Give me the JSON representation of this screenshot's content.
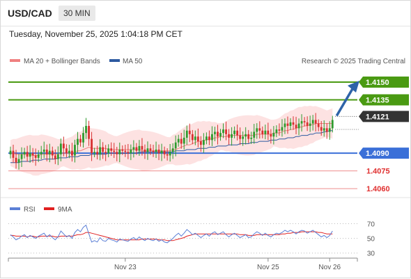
{
  "header": {
    "symbol": "USD/CAD",
    "timeframe": "30 MIN"
  },
  "timestamp": "Tuesday, November 25, 2025 1:04:18 PM CET",
  "legend": {
    "bollinger": {
      "label": "MA 20 + Bollinger Bands",
      "color": "#f08080"
    },
    "ma50": {
      "label": "MA 50",
      "color": "#2d5aa0"
    },
    "rsi": {
      "label": "RSI",
      "color": "#5b7fd6"
    },
    "rsi_ma": {
      "label": "9MA",
      "color": "#e02020"
    }
  },
  "copyright": "Research © 2025 Trading Central",
  "colors": {
    "up": "#2e9b2e",
    "down": "#d83030",
    "target": "#4a9a12",
    "pivot": "#3a6fd8",
    "support": "#e03030",
    "arrow": "#2e63a8",
    "current": "#333333"
  },
  "chart_data": [
    {
      "type": "candlestick",
      "title": "USD/CAD",
      "timeframe": "30 MIN",
      "x_ticks": [
        {
          "label": "Nov 23",
          "index": 41
        },
        {
          "label": "Nov 25",
          "index": 92
        },
        {
          "label": "Nov 26",
          "index": 114
        }
      ],
      "ylim": [
        1.4053,
        1.416
      ],
      "current_price": "1.4121",
      "levels": [
        {
          "label": "1.4150",
          "value": 1.415,
          "kind": "target"
        },
        {
          "label": "1.4135",
          "value": 1.4135,
          "kind": "target"
        },
        {
          "label": "1.4090",
          "value": 1.409,
          "kind": "pivot"
        },
        {
          "label": "1.4075",
          "value": 1.4075,
          "kind": "support"
        },
        {
          "label": "1.4060",
          "value": 1.406,
          "kind": "support"
        }
      ],
      "close": [
        1.4092,
        1.4086,
        1.4082,
        1.4085,
        1.4089,
        1.4091,
        1.4087,
        1.409,
        1.4088,
        1.4086,
        1.4089,
        1.4091,
        1.4093,
        1.4089,
        1.4092,
        1.4088,
        1.4085,
        1.4089,
        1.4098,
        1.4094,
        1.409,
        1.4092,
        1.4088,
        1.4097,
        1.4102,
        1.4099,
        1.4107,
        1.4113,
        1.4102,
        1.409,
        1.4091,
        1.4089,
        1.4095,
        1.4091,
        1.409,
        1.4094,
        1.4092,
        1.4091,
        1.4089,
        1.4093,
        1.4092,
        1.4091,
        1.409,
        1.4093,
        1.4095,
        1.4092,
        1.4096,
        1.4093,
        1.4091,
        1.4094,
        1.4092,
        1.4091,
        1.4093,
        1.409,
        1.4092,
        1.4089,
        1.4088,
        1.4091,
        1.4094,
        1.4099,
        1.4102,
        1.4098,
        1.4103,
        1.4109,
        1.4106,
        1.4101,
        1.4104,
        1.41,
        1.4097,
        1.4101,
        1.4104,
        1.4101,
        1.4106,
        1.4108,
        1.4104,
        1.4107,
        1.411,
        1.4106,
        1.4103,
        1.4106,
        1.4109,
        1.4105,
        1.4102,
        1.4104,
        1.4106,
        1.4102,
        1.4103,
        1.4108,
        1.4111,
        1.4109,
        1.4106,
        1.4109,
        1.4106,
        1.4104,
        1.4107,
        1.411,
        1.4109,
        1.4112,
        1.4115,
        1.4113,
        1.4116,
        1.4114,
        1.4111,
        1.4115,
        1.4117,
        1.4116,
        1.4113,
        1.4115,
        1.4118,
        1.4115,
        1.4112,
        1.4109,
        1.4111,
        1.4108,
        1.4111,
        1.4118
      ],
      "ma20": [
        1.409,
        1.409,
        1.4089,
        1.4089,
        1.4089,
        1.4089,
        1.4089,
        1.4089,
        1.4088,
        1.4088,
        1.4088,
        1.4089,
        1.4089,
        1.4089,
        1.4089,
        1.4089,
        1.4089,
        1.4089,
        1.409,
        1.409,
        1.409,
        1.409,
        1.409,
        1.4091,
        1.4092,
        1.4092,
        1.4093,
        1.4094,
        1.4095,
        1.4094,
        1.4094,
        1.4094,
        1.4094,
        1.4094,
        1.4094,
        1.4093,
        1.4093,
        1.4093,
        1.4093,
        1.4093,
        1.4093,
        1.4093,
        1.4093,
        1.4093,
        1.4093,
        1.4093,
        1.4093,
        1.4092,
        1.4092,
        1.4092,
        1.4092,
        1.4092,
        1.4092,
        1.4092,
        1.4092,
        1.4092,
        1.4092,
        1.4092,
        1.4093,
        1.4093,
        1.4094,
        1.4095,
        1.4096,
        1.4097,
        1.4097,
        1.4098,
        1.4099,
        1.41,
        1.41,
        1.4101,
        1.4101,
        1.4102,
        1.4102,
        1.4103,
        1.4103,
        1.4104,
        1.4104,
        1.4104,
        1.4105,
        1.4105,
        1.4105,
        1.4105,
        1.4105,
        1.4105,
        1.4105,
        1.4105,
        1.4105,
        1.4105,
        1.4106,
        1.4106,
        1.4106,
        1.4106,
        1.4106,
        1.4106,
        1.4107,
        1.4107,
        1.4107,
        1.4108,
        1.4109,
        1.4109,
        1.411,
        1.411,
        1.4111,
        1.4112,
        1.4112,
        1.4113,
        1.4113,
        1.4114,
        1.4114,
        1.4115,
        1.4115,
        1.4115,
        1.4115,
        1.4115,
        1.4115,
        1.4115
      ],
      "ma50": [
        1.4082,
        1.4082,
        1.4082,
        1.4082,
        1.4083,
        1.4083,
        1.4083,
        1.4083,
        1.4084,
        1.4084,
        1.4084,
        1.4084,
        1.4085,
        1.4085,
        1.4085,
        1.4085,
        1.4085,
        1.4086,
        1.4086,
        1.4086,
        1.4086,
        1.4087,
        1.4087,
        1.4087,
        1.4087,
        1.4088,
        1.4088,
        1.4088,
        1.4088,
        1.4089,
        1.4089,
        1.4089,
        1.4089,
        1.4089,
        1.4089,
        1.409,
        1.409,
        1.409,
        1.409,
        1.409,
        1.409,
        1.409,
        1.409,
        1.409,
        1.409,
        1.409,
        1.4091,
        1.4091,
        1.4091,
        1.4091,
        1.4091,
        1.4091,
        1.4091,
        1.4091,
        1.4091,
        1.4091,
        1.4091,
        1.4091,
        1.4091,
        1.4092,
        1.4092,
        1.4092,
        1.4092,
        1.4093,
        1.4093,
        1.4093,
        1.4093,
        1.4094,
        1.4094,
        1.4094,
        1.4094,
        1.4095,
        1.4095,
        1.4095,
        1.4096,
        1.4096,
        1.4096,
        1.4096,
        1.4097,
        1.4097,
        1.4097,
        1.4097,
        1.4098,
        1.4098,
        1.4098,
        1.4098,
        1.4099,
        1.4099,
        1.4099,
        1.41,
        1.41,
        1.41,
        1.41,
        1.4101,
        1.4101,
        1.4101,
        1.4102,
        1.4102,
        1.4102,
        1.4103,
        1.4103,
        1.4103,
        1.4104,
        1.4104,
        1.4105,
        1.4105,
        1.4105,
        1.4106,
        1.4106,
        1.4107,
        1.4107,
        1.4107,
        1.4108,
        1.4108,
        1.4109,
        1.4109
      ]
    },
    {
      "type": "line",
      "title": "RSI",
      "y_ticks": [
        70,
        50,
        30
      ],
      "ylim": [
        25,
        78
      ],
      "series": [
        {
          "name": "RSI",
          "values": [
            55,
            52,
            48,
            50,
            53,
            55,
            51,
            54,
            52,
            50,
            53,
            55,
            57,
            52,
            55,
            51,
            48,
            52,
            60,
            56,
            52,
            54,
            50,
            58,
            62,
            59,
            65,
            68,
            56,
            45,
            47,
            45,
            51,
            47,
            46,
            50,
            48,
            47,
            45,
            49,
            48,
            47,
            46,
            49,
            51,
            48,
            52,
            49,
            47,
            50,
            48,
            47,
            49,
            46,
            48,
            45,
            44,
            47,
            50,
            54,
            57,
            53,
            57,
            62,
            59,
            55,
            57,
            54,
            51,
            54,
            56,
            53,
            57,
            59,
            55,
            57,
            59,
            55,
            52,
            55,
            57,
            54,
            51,
            53,
            55,
            51,
            52,
            56,
            59,
            57,
            54,
            57,
            54,
            52,
            55,
            57,
            56,
            58,
            61,
            59,
            61,
            59,
            56,
            59,
            61,
            60,
            57,
            59,
            61,
            58,
            55,
            52,
            54,
            51,
            54,
            60
          ]
        },
        {
          "name": "9MA",
          "values": [
            54,
            54,
            53,
            53,
            53,
            53,
            52,
            53,
            53,
            52,
            52,
            53,
            53,
            53,
            53,
            53,
            52,
            52,
            53,
            53,
            53,
            53,
            53,
            54,
            55,
            55,
            56,
            58,
            58,
            57,
            56,
            55,
            54,
            53,
            52,
            51,
            50,
            49,
            48,
            48,
            48,
            48,
            48,
            48,
            48,
            48,
            48,
            49,
            49,
            49,
            49,
            49,
            49,
            48,
            48,
            48,
            47,
            47,
            47,
            48,
            49,
            50,
            51,
            53,
            54,
            55,
            56,
            56,
            56,
            56,
            56,
            56,
            56,
            56,
            56,
            56,
            56,
            56,
            56,
            56,
            56,
            56,
            55,
            55,
            55,
            54,
            54,
            54,
            55,
            55,
            55,
            55,
            55,
            55,
            55,
            55,
            55,
            56,
            56,
            57,
            57,
            58,
            58,
            58,
            59,
            59,
            59,
            59,
            59,
            59,
            58,
            58,
            57,
            56,
            56,
            56
          ]
        }
      ]
    }
  ]
}
